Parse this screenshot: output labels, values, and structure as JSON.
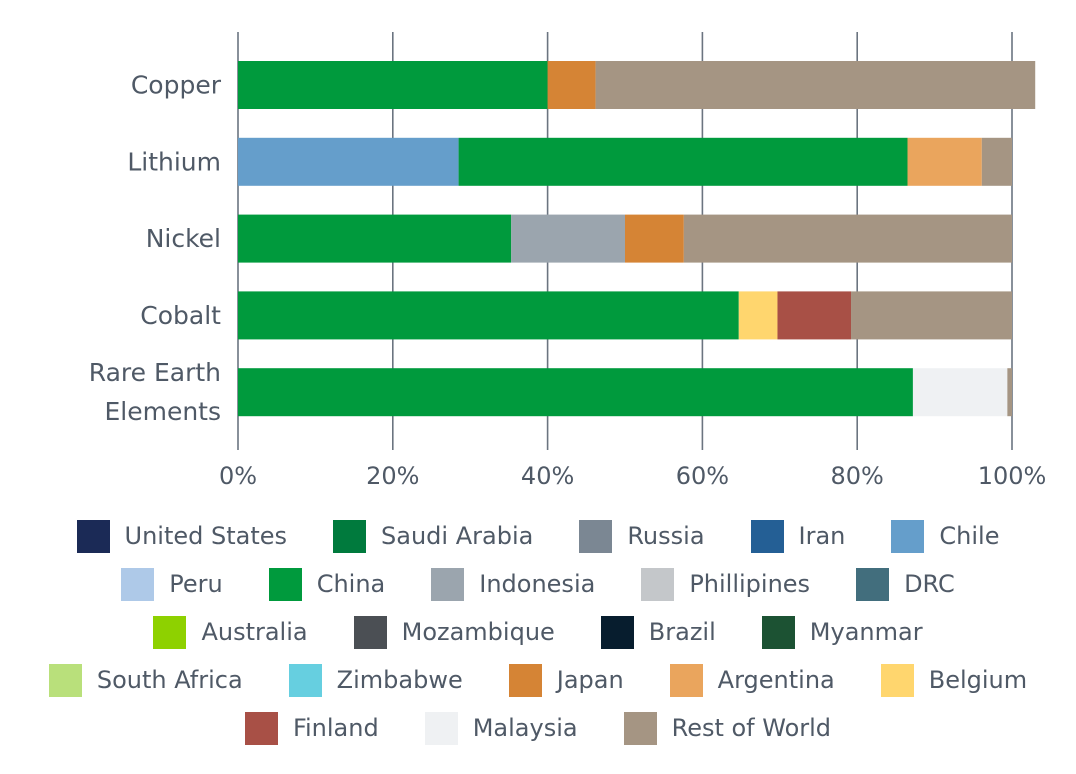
{
  "chart_data": {
    "type": "bar",
    "orientation": "horizontal",
    "stacked": true,
    "title": "",
    "xlabel": "",
    "ylabel": "",
    "xlim": [
      0,
      100
    ],
    "x_ticks": [
      "0%",
      "20%",
      "40%",
      "60%",
      "80%",
      "100%"
    ],
    "x_tick_values": [
      0,
      20,
      40,
      60,
      80,
      100
    ],
    "grid": true,
    "legend_placement": "bottom",
    "categories": [
      {
        "lines": [
          "Copper"
        ]
      },
      {
        "lines": [
          "Lithium"
        ]
      },
      {
        "lines": [
          "Nickel"
        ]
      },
      {
        "lines": [
          "Cobalt"
        ]
      },
      {
        "lines": [
          "Rare Earth",
          "Elements"
        ]
      }
    ],
    "series": [
      {
        "name": "United States",
        "color": "#1b2a56",
        "values": [
          0,
          0,
          0,
          0,
          0
        ]
      },
      {
        "name": "Saudi Arabia",
        "color": "#007a3d",
        "values": [
          0,
          0,
          0,
          0,
          0
        ]
      },
      {
        "name": "Russia",
        "color": "#7b8793",
        "values": [
          0,
          0,
          0,
          0,
          0
        ]
      },
      {
        "name": "Iran",
        "color": "#245f95",
        "values": [
          0,
          0,
          0,
          0,
          0
        ]
      },
      {
        "name": "Chile",
        "color": "#659ecb",
        "values": [
          0,
          28.5,
          0,
          0,
          0
        ]
      },
      {
        "name": "Peru",
        "color": "#aec9e8",
        "values": [
          0,
          0,
          0,
          0,
          0
        ]
      },
      {
        "name": "China",
        "color": "#009a3d",
        "values": [
          40,
          58,
          35.3,
          64.7,
          87.2
        ]
      },
      {
        "name": "Indonesia",
        "color": "#9ba5ae",
        "values": [
          0,
          0,
          14.7,
          0,
          0
        ]
      },
      {
        "name": "Phillipines",
        "color": "#c4c7ca",
        "values": [
          0,
          0,
          0,
          0,
          0
        ]
      },
      {
        "name": "DRC",
        "color": "#426e7d",
        "values": [
          0,
          0,
          0,
          0,
          0
        ]
      },
      {
        "name": "Australia",
        "color": "#8ed100",
        "values": [
          0,
          0,
          0,
          0,
          0
        ]
      },
      {
        "name": "Mozambique",
        "color": "#4b4f54",
        "values": [
          0,
          0,
          0,
          0,
          0
        ]
      },
      {
        "name": "Brazil",
        "color": "#071d2e",
        "values": [
          0,
          0,
          0,
          0,
          0
        ]
      },
      {
        "name": "Myanmar",
        "color": "#1c5233",
        "values": [
          0,
          0,
          0,
          0,
          0
        ]
      },
      {
        "name": "South Africa",
        "color": "#b9e07b",
        "values": [
          0,
          0,
          0,
          0,
          0
        ]
      },
      {
        "name": "Zimbabwe",
        "color": "#66cfe0",
        "values": [
          0,
          0,
          0,
          0,
          0
        ]
      },
      {
        "name": "Japan",
        "color": "#d58435",
        "values": [
          6.2,
          0,
          7.6,
          0,
          0
        ]
      },
      {
        "name": "Argentina",
        "color": "#eaa55d",
        "values": [
          0,
          9.6,
          0,
          0,
          0
        ]
      },
      {
        "name": "Belgium",
        "color": "#ffd66e",
        "values": [
          0,
          0,
          0,
          5,
          0
        ]
      },
      {
        "name": "Finland",
        "color": "#a85046",
        "values": [
          0,
          0,
          0,
          9.5,
          0
        ]
      },
      {
        "name": "Malaysia",
        "color": "#eff1f3",
        "values": [
          0,
          0,
          0,
          0,
          12.2
        ]
      },
      {
        "name": "Rest of World",
        "color": "#a59583",
        "values": [
          56.8,
          3.9,
          42.4,
          20.8,
          0.6
        ]
      }
    ],
    "legend_rows": [
      [
        "United States",
        "Saudi Arabia",
        "Russia",
        "Iran",
        "Chile"
      ],
      [
        "Peru",
        "China",
        "Indonesia",
        "Phillipines",
        "DRC"
      ],
      [
        "Australia",
        "Mozambique",
        "Brazil",
        "Myanmar"
      ],
      [
        "South Africa",
        "Zimbabwe",
        "Japan",
        "Argentina",
        "Belgium"
      ],
      [
        "Finland",
        "Malaysia",
        "Rest of World"
      ]
    ]
  }
}
